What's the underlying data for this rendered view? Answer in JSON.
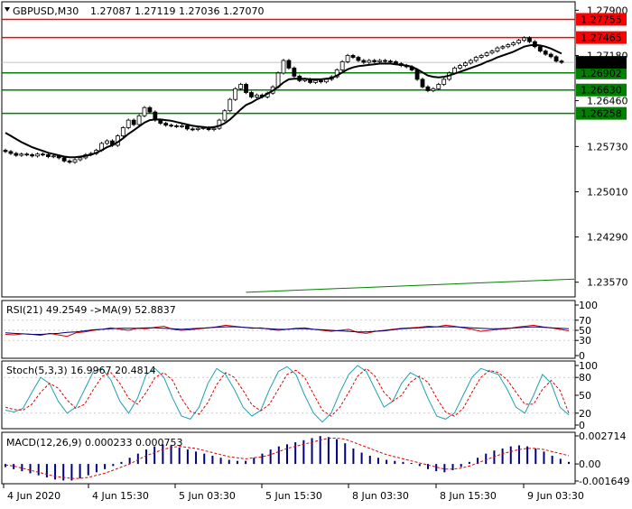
{
  "header": {
    "symbol": "GBPUSD,M30",
    "quotes": "1.27087  1.27119  1.27036  1.27070"
  },
  "colors": {
    "background": "#ffffff",
    "frame": "#000000",
    "candle": "#000000",
    "ma_line": "#000000",
    "red_level": "#ff0000",
    "green_level": "#008000",
    "current_price_box": "#000000",
    "rsi_line": "#d00000",
    "rsi_ma": "#000080",
    "stoch_main": "#20a0b0",
    "stoch_signal": "#e00000",
    "macd_hist": "#000080",
    "macd_signal": "#e00000"
  },
  "price_axis": {
    "ticks": [
      "1.27900",
      "1.27180",
      "1.26460",
      "1.25730",
      "1.25010",
      "1.24290",
      "1.23570"
    ]
  },
  "levels": [
    {
      "label": "1.27755",
      "value": 1.27755,
      "color": "red"
    },
    {
      "label": "1.27465",
      "value": 1.27465,
      "color": "red"
    },
    {
      "label": "1.26902",
      "value": 1.26902,
      "color": "green"
    },
    {
      "label": "1.26630",
      "value": 1.2663,
      "color": "green"
    },
    {
      "label": "1.26258",
      "value": 1.26258,
      "color": "green"
    }
  ],
  "current_price": {
    "label": "1.27070",
    "value": 1.2707
  },
  "time_axis": {
    "labels": [
      "4 Jun 2020",
      "4 Jun 15:30",
      "5 Jun 03:30",
      "5 Jun 15:30",
      "8 Jun 03:30",
      "8 Jun 15:30",
      "9 Jun 03:30"
    ]
  },
  "rsi": {
    "title": "RSI(21) 49.2549  ->MA(9) 52.8837",
    "ticks": [
      "100",
      "70",
      "50",
      "30",
      "0"
    ]
  },
  "stoch": {
    "title": "Stoch(5,3,3) 16.9967 20.4814",
    "ticks": [
      "100",
      "80",
      "50",
      "20",
      "0"
    ]
  },
  "macd": {
    "title": "MACD(12,26,9) 0.000233 0.000753",
    "ticks": [
      "0.002714",
      "0.00",
      "-0.001649"
    ]
  },
  "chart_data": {
    "type": "candlestick",
    "title": "GBPUSD,M30",
    "ylim": [
      1.2335,
      1.2802
    ],
    "close": [
      1.2565,
      1.2562,
      1.2559,
      1.2561,
      1.256,
      1.2558,
      1.2561,
      1.256,
      1.2557,
      1.2558,
      1.2555,
      1.255,
      1.2548,
      1.2552,
      1.2555,
      1.256,
      1.2562,
      1.2567,
      1.2578,
      1.2582,
      1.2575,
      1.259,
      1.2603,
      1.2615,
      1.2608,
      1.2622,
      1.2635,
      1.2628,
      1.2615,
      1.261,
      1.2607,
      1.2606,
      1.2605,
      1.2606,
      1.2601,
      1.26,
      1.2602,
      1.2603,
      1.26,
      1.2602,
      1.2615,
      1.263,
      1.2648,
      1.2665,
      1.2672,
      1.2659,
      1.2652,
      1.2655,
      1.2652,
      1.2658,
      1.2668,
      1.269,
      1.271,
      1.2698,
      1.2685,
      1.2678,
      1.268,
      1.2675,
      1.2678,
      1.2676,
      1.268,
      1.2684,
      1.2695,
      1.2708,
      1.2718,
      1.2715,
      1.271,
      1.2707,
      1.271,
      1.2708,
      1.271,
      1.2709,
      1.2708,
      1.2705,
      1.2702,
      1.27,
      1.2695,
      1.268,
      1.2668,
      1.2662,
      1.2665,
      1.2672,
      1.268,
      1.269,
      1.2698,
      1.2702,
      1.2706,
      1.271,
      1.2715,
      1.2718,
      1.2722,
      1.2725,
      1.273,
      1.2732,
      1.2735,
      1.2738,
      1.2742,
      1.2746,
      1.274,
      1.2732,
      1.2725,
      1.272,
      1.2716,
      1.2709,
      1.2707
    ],
    "moving_average": [
      1.2595,
      1.259,
      1.2585,
      1.258,
      1.2576,
      1.2572,
      1.2569,
      1.2566,
      1.2563,
      1.2561,
      1.2559,
      1.2557,
      1.2556,
      1.2556,
      1.2557,
      1.2558,
      1.256,
      1.2563,
      1.2567,
      1.2572,
      1.2575,
      1.258,
      1.2586,
      1.2593,
      1.2599,
      1.2605,
      1.2611,
      1.2615,
      1.2616,
      1.2616,
      1.2615,
      1.2614,
      1.2612,
      1.261,
      1.2608,
      1.2606,
      1.2605,
      1.2604,
      1.2603,
      1.2604,
      1.2606,
      1.261,
      1.2616,
      1.2624,
      1.2632,
      1.2639,
      1.2643,
      1.2648,
      1.2652,
      1.2657,
      1.2662,
      1.2668,
      1.2675,
      1.268,
      1.2681,
      1.2681,
      1.2681,
      1.268,
      1.268,
      1.268,
      1.2681,
      1.2682,
      1.2686,
      1.2691,
      1.2696,
      1.2699,
      1.2701,
      1.2702,
      1.2703,
      1.2704,
      1.2705,
      1.2705,
      1.2705,
      1.2704,
      1.2703,
      1.2702,
      1.27,
      1.2696,
      1.2691,
      1.2686,
      1.2684,
      1.2683,
      1.2684,
      1.2686,
      1.2689,
      1.2692,
      1.2695,
      1.2698,
      1.2701,
      1.2704,
      1.2708,
      1.2711,
      1.2715,
      1.2718,
      1.2721,
      1.2724,
      1.2728,
      1.2732,
      1.2734,
      1.2735,
      1.2734,
      1.2732,
      1.2729,
      1.2725,
      1.2721
    ],
    "trendline_green": {
      "start_x_index": 45,
      "end_x_index": 106,
      "start": 1.2341,
      "end": 1.2362
    },
    "rsi_values": [
      42,
      41,
      43,
      42,
      40,
      44,
      41,
      38,
      45,
      47,
      50,
      52,
      55,
      52,
      50,
      54,
      53,
      56,
      58,
      52,
      50,
      51,
      53,
      55,
      57,
      60,
      58,
      56,
      54,
      55,
      52,
      50,
      52,
      54,
      55,
      52,
      50,
      48,
      50,
      52,
      46,
      44,
      48,
      50,
      52,
      54,
      55,
      56,
      58,
      57,
      60,
      58,
      55,
      52,
      48,
      50,
      52,
      53,
      56,
      58,
      60,
      57,
      55,
      52,
      49
    ],
    "rsi_ma_values": [
      45,
      44,
      43,
      42,
      42,
      43,
      44,
      46,
      47,
      49,
      51,
      52,
      53,
      54,
      54,
      54,
      55,
      55,
      54,
      53,
      52,
      53,
      54,
      55,
      56,
      57,
      57,
      56,
      55,
      54,
      53,
      52,
      52,
      53,
      53,
      52,
      51,
      50,
      49,
      48,
      47,
      47,
      48,
      49,
      51,
      53,
      54,
      55,
      56,
      57,
      57,
      57,
      56,
      55,
      54,
      53,
      53,
      54,
      55,
      56,
      57,
      56,
      55,
      54,
      53
    ],
    "stoch_main": [
      25,
      22,
      28,
      55,
      80,
      70,
      40,
      20,
      30,
      60,
      90,
      95,
      75,
      40,
      20,
      45,
      85,
      95,
      80,
      45,
      15,
      10,
      30,
      70,
      95,
      85,
      60,
      30,
      15,
      25,
      60,
      90,
      98,
      85,
      50,
      20,
      5,
      20,
      55,
      85,
      100,
      90,
      60,
      30,
      40,
      70,
      88,
      80,
      45,
      15,
      10,
      20,
      50,
      80,
      95,
      90,
      85,
      60,
      30,
      20,
      50,
      85,
      70,
      30,
      17
    ],
    "stoch_signal": [
      30,
      26,
      25,
      35,
      55,
      70,
      62,
      42,
      28,
      35,
      60,
      82,
      88,
      70,
      45,
      35,
      55,
      80,
      88,
      75,
      45,
      23,
      18,
      38,
      68,
      88,
      80,
      58,
      34,
      24,
      35,
      60,
      85,
      92,
      80,
      52,
      25,
      15,
      30,
      55,
      82,
      95,
      82,
      55,
      40,
      50,
      72,
      82,
      72,
      45,
      22,
      15,
      28,
      55,
      80,
      92,
      88,
      76,
      55,
      35,
      35,
      60,
      75,
      58,
      20
    ],
    "macd_hist": [
      -0.0003,
      -0.0005,
      -0.0007,
      -0.0009,
      -0.0011,
      -0.0013,
      -0.0015,
      -0.0016,
      -0.0016,
      -0.0014,
      -0.0011,
      -0.0008,
      -0.0005,
      -0.0002,
      0.0002,
      0.0006,
      0.001,
      0.0014,
      0.0017,
      0.0019,
      0.0018,
      0.0016,
      0.0014,
      0.0012,
      0.001,
      0.0008,
      0.0006,
      0.0004,
      0.0003,
      0.0003,
      0.0006,
      0.001,
      0.0014,
      0.0017,
      0.0019,
      0.0021,
      0.0023,
      0.0025,
      0.0027,
      0.0026,
      0.0024,
      0.002,
      0.0015,
      0.0011,
      0.0008,
      0.0006,
      0.0004,
      0.0003,
      0.0002,
      0.0001,
      -0.0002,
      -0.0005,
      -0.0007,
      -0.0008,
      -0.0006,
      -0.0003,
      0.0002,
      0.0006,
      0.001,
      0.0013,
      0.0015,
      0.0017,
      0.0018,
      0.0017,
      0.0015,
      0.0012,
      0.0008,
      0.0005,
      0.0002
    ],
    "macd_signal": [
      -0.0001,
      -0.0002,
      -0.0004,
      -0.0006,
      -0.0008,
      -0.001,
      -0.0012,
      -0.0013,
      -0.0014,
      -0.0014,
      -0.0013,
      -0.0011,
      -0.0009,
      -0.0006,
      -0.0003,
      0.0,
      0.0004,
      0.0008,
      0.0011,
      0.0014,
      0.0016,
      0.0017,
      0.0016,
      0.0015,
      0.0013,
      0.0011,
      0.0009,
      0.0007,
      0.0006,
      0.0005,
      0.0006,
      0.0007,
      0.0009,
      0.0012,
      0.0015,
      0.0017,
      0.0019,
      0.0021,
      0.0023,
      0.0025,
      0.0025,
      0.0024,
      0.0021,
      0.0018,
      0.0015,
      0.0012,
      0.0009,
      0.0007,
      0.0005,
      0.0003,
      0.0001,
      -0.0001,
      -0.0003,
      -0.0005,
      -0.0005,
      -0.0004,
      -0.0002,
      0.0001,
      0.0004,
      0.0007,
      0.001,
      0.0012,
      0.0014,
      0.0015,
      0.0015,
      0.0014,
      0.0012,
      0.001,
      0.0008
    ],
    "legend": "none",
    "grid": false
  }
}
